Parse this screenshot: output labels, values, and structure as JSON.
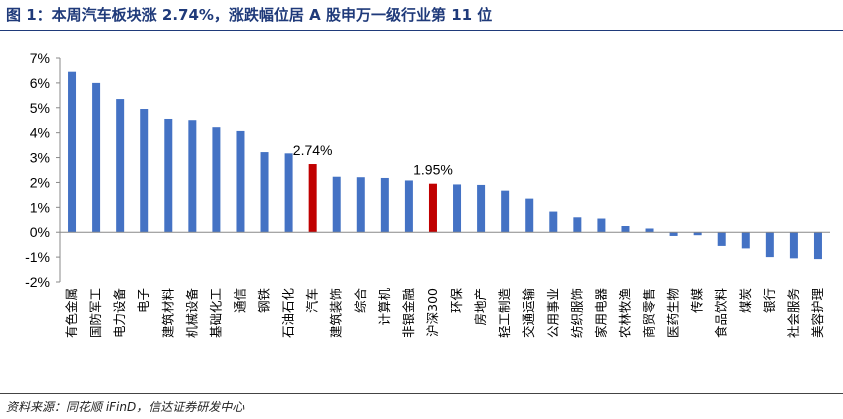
{
  "title": "图 1：本周汽车板块涨 2.74%，涨跌幅位居 A 股申万一级行业第 11 位",
  "source": "资料来源：同花顺 iFinD，信达证券研发中心",
  "colors": {
    "default_bar": "#4472c4",
    "highlight_bar": "#c00000",
    "title": "#1f3a7a"
  },
  "chart_data": {
    "type": "bar",
    "ylim": [
      -2,
      7
    ],
    "yticks": [
      "7%",
      "6%",
      "5%",
      "4%",
      "3%",
      "2%",
      "1%",
      "0%",
      "-1%",
      "-2%"
    ],
    "ytick_values": [
      7,
      6,
      5,
      4,
      3,
      2,
      1,
      0,
      -1,
      -2
    ],
    "grid": false,
    "categories": [
      "有色金属",
      "国防军工",
      "电力设备",
      "电子",
      "建筑材料",
      "机械设备",
      "基础化工",
      "通信",
      "钢铁",
      "石油石化",
      "汽车",
      "建筑装饰",
      "综合",
      "计算机",
      "非银金融",
      "沪深300",
      "环保",
      "房地产",
      "轻工制造",
      "交通运输",
      "公用事业",
      "纺织服饰",
      "家用电器",
      "农林牧渔",
      "商贸零售",
      "医药生物",
      "传媒",
      "食品饮料",
      "煤炭",
      "银行",
      "社会服务",
      "美容护理"
    ],
    "values": [
      6.45,
      6.0,
      5.35,
      4.95,
      4.55,
      4.5,
      4.22,
      4.07,
      3.22,
      3.17,
      2.74,
      2.23,
      2.21,
      2.18,
      2.08,
      1.95,
      1.92,
      1.9,
      1.67,
      1.35,
      0.83,
      0.6,
      0.55,
      0.25,
      0.15,
      -0.15,
      -0.12,
      -0.55,
      -0.65,
      -1.0,
      -1.05,
      -1.08
    ],
    "highlight": [
      "汽车",
      "沪深300"
    ],
    "data_labels": [
      {
        "category": "汽车",
        "text": "2.74%"
      },
      {
        "category": "沪深300",
        "text": "1.95%"
      }
    ]
  }
}
